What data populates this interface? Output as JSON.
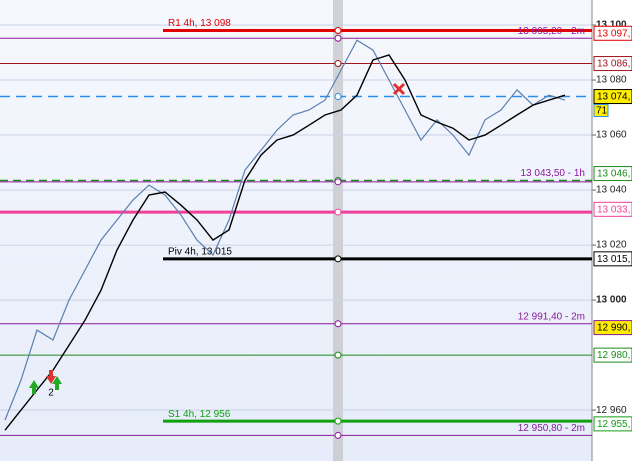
{
  "chart_data": {
    "type": "line",
    "x": [
      0,
      1,
      2,
      3,
      4,
      5,
      6,
      7,
      8,
      9,
      10,
      11,
      12,
      13,
      14,
      15,
      16,
      17,
      18,
      19,
      20,
      21,
      22,
      23,
      24,
      25,
      26,
      27,
      28,
      29,
      30,
      31,
      32,
      33,
      34,
      35
    ],
    "xlim": [
      -0.3125,
      36.6875
    ],
    "ylim": [
      12941.5,
      13109.1
    ],
    "yticks": [
      {
        "value": 13100,
        "label": "13 100"
      },
      {
        "value": 13080,
        "label": "13 080"
      },
      {
        "value": 13060,
        "label": "13 060"
      },
      {
        "value": 13040,
        "label": "13 040"
      },
      {
        "value": 13020,
        "label": "13 020"
      },
      {
        "value": 13000,
        "label": "13 000"
      },
      {
        "value": 12960,
        "label": "12 960"
      }
    ],
    "grid": true,
    "series": [
      {
        "color": "#5b7fb0",
        "values": [
          12956.4,
          12970.9,
          12989.1,
          12985.5,
          13000,
          13010.9,
          13021.8,
          13029.1,
          13036.4,
          13041.8,
          13038.2,
          13030.9,
          13021.8,
          13016.4,
          13029.1,
          13047.3,
          13054.5,
          13061.8,
          13067.3,
          13069.1,
          13072.7,
          13083.6,
          13094.5,
          13090.9,
          13080,
          13069.1,
          13058.2,
          13065.5,
          13060,
          13052.7,
          13065.5,
          13069.1,
          13076.4,
          13070.9,
          13074.5,
          13072.7
        ]
      },
      {
        "color": "#000000",
        "values": [
          12952.7,
          12960,
          12967.3,
          12974.5,
          12983.6,
          12992.7,
          13003.6,
          13018.2,
          13029.1,
          13038.2,
          13039.3,
          13034.5,
          13029.1,
          13021.8,
          13025.5,
          13043.6,
          13052.7,
          13058.2,
          13060,
          13063.6,
          13067.3,
          13069.1,
          13074.5,
          13087.3,
          13089.1,
          13080,
          13067.3,
          13064.7,
          13062.5,
          13058.2,
          13060,
          13063.6,
          13067.3,
          13070.9,
          13072.7,
          13074.5
        ]
      }
    ],
    "levels": [
      {
        "label": "R1 4h, 13 098",
        "value": 13098,
        "color": "#e00000",
        "style": "thick",
        "span": "partial"
      },
      {
        "label": "13 095,20 - 2m",
        "value": 13095.2,
        "color": "#8b1a9b",
        "style": "thin",
        "span": "full"
      },
      {
        "value": 13086,
        "color": "#a0141e",
        "style": "thin",
        "span": "full"
      },
      {
        "value": 13074,
        "color": "#2a8ee8",
        "style": "dashed",
        "span": "full"
      },
      {
        "label": "13 043,50 - 1h",
        "value": 13043.5,
        "color": "#1a8a1a",
        "style": "dashed",
        "span": "full"
      },
      {
        "value": 13043,
        "color": "#8b1a9b",
        "style": "thin",
        "span": "full"
      },
      {
        "value": 13032,
        "color": "#f0409a",
        "style": "thick",
        "span": "full"
      },
      {
        "label": "Piv 4h, 13 015",
        "value": 13015,
        "color": "#000000",
        "style": "thick",
        "span": "partial"
      },
      {
        "label": "12 991,40 - 2m",
        "value": 12991.4,
        "color": "#8b1a9b",
        "style": "thin",
        "span": "full"
      },
      {
        "value": 12980,
        "color": "#1a8a1a",
        "style": "thin",
        "span": "full"
      },
      {
        "label": "S1 4h, 12 956",
        "value": 12956,
        "color": "#10a010",
        "style": "thick",
        "span": "partial"
      },
      {
        "label": "12 950,80 - 2m",
        "value": 12950.8,
        "color": "#8b1a9b",
        "style": "thin",
        "span": "full"
      }
    ],
    "price_tags": [
      {
        "label": "13 097,",
        "value": 13097,
        "color": "#e00000",
        "bg": "#ffffff"
      },
      {
        "label": "13 086,",
        "value": 13086,
        "color": "#a0141e",
        "bg": "#ffffff"
      },
      {
        "label": "13 074,",
        "value": 13074,
        "color": "#000000",
        "bg": "#ffee00"
      },
      {
        "label": "13 046,",
        "value": 13046,
        "color": "#1a8a1a",
        "bg": "#ffffff"
      },
      {
        "label": "13 033,",
        "value": 13033,
        "color": "#f0409a",
        "bg": "#ffffff"
      },
      {
        "label": "13 015,",
        "value": 13015,
        "color": "#000000",
        "bg": "#ffffff"
      },
      {
        "label": "12 990,",
        "value": 12990,
        "color": "#8b1a9b",
        "bg": "#ffee00"
      },
      {
        "label": "12 980,",
        "value": 12980,
        "color": "#1a8a1a",
        "bg": "#ffffff"
      },
      {
        "label": "12 955,",
        "value": 12955,
        "color": "#10a010",
        "bg": "#ffffff"
      }
    ],
    "timer": "71",
    "annotation": "2"
  }
}
